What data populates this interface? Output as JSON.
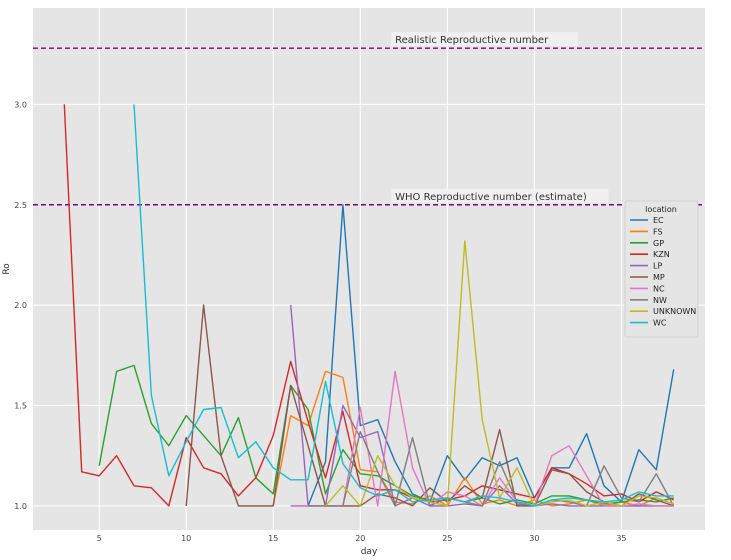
{
  "chart_data": {
    "type": "line",
    "xlabel": "day",
    "ylabel": "Ro",
    "xlim": [
      1.2,
      39.8
    ],
    "ylim": [
      0.88,
      3.48
    ],
    "xticks": [
      5,
      10,
      15,
      20,
      25,
      30,
      35
    ],
    "yticks": [
      1.0,
      1.5,
      2.0,
      2.5,
      3.0
    ],
    "ytick_labels": [
      "1.0",
      "1.5",
      "2.0",
      "2.5",
      "3.0"
    ],
    "grid": true,
    "legend": {
      "title": "location",
      "placement": "right"
    },
    "reference_lines": [
      {
        "y": 3.28,
        "label": "Realistic Reproductive number",
        "color": "#800080",
        "label_x": 22
      },
      {
        "y": 2.5,
        "label": "WHO Reproductive number (estimate)",
        "color": "#800080",
        "label_x": 22
      }
    ],
    "series": [
      {
        "name": "EC",
        "color": "#1f77b4",
        "x": [
          16,
          17,
          18,
          19,
          20,
          21,
          22,
          23,
          24,
          25,
          26,
          27,
          28,
          29,
          30,
          31,
          32,
          33,
          34,
          35,
          36,
          37,
          38
        ],
        "y": [
          1.0,
          1.0,
          1.22,
          2.5,
          1.4,
          1.43,
          1.22,
          1.06,
          1.02,
          1.25,
          1.13,
          1.24,
          1.2,
          1.24,
          1.04,
          1.19,
          1.19,
          1.36,
          1.1,
          1.02,
          1.28,
          1.18,
          1.68
        ]
      },
      {
        "name": "FS",
        "color": "#ff7f0e",
        "x": [
          15,
          16,
          17,
          18,
          19,
          20,
          21,
          22,
          23,
          24,
          25,
          26,
          27,
          28,
          29,
          30,
          31,
          32,
          33,
          34,
          35,
          36,
          37,
          38
        ],
        "y": [
          1.0,
          1.45,
          1.4,
          1.67,
          1.64,
          1.18,
          1.17,
          1.02,
          1.01,
          1.05,
          1.0,
          1.14,
          1.01,
          1.03,
          1.0,
          1.03,
          1.0,
          1.01,
          1.03,
          1.0,
          1.02,
          1.0,
          1.04,
          1.01
        ]
      },
      {
        "name": "GP",
        "color": "#2ca02c",
        "x": [
          5,
          6,
          7,
          8,
          9,
          10,
          11,
          12,
          13,
          14,
          15,
          16,
          17,
          18,
          19,
          20,
          21,
          22,
          23,
          24,
          25,
          26,
          27,
          28,
          29,
          30,
          31,
          32,
          33,
          34,
          35,
          36,
          37,
          38
        ],
        "y": [
          1.2,
          1.67,
          1.7,
          1.41,
          1.3,
          1.45,
          1.35,
          1.25,
          1.44,
          1.14,
          1.06,
          1.6,
          1.48,
          1.06,
          1.28,
          1.16,
          1.15,
          1.1,
          1.05,
          1.03,
          1.04,
          1.02,
          1.04,
          1.01,
          1.03,
          1.01,
          1.05,
          1.05,
          1.03,
          1.01,
          1.02,
          1.03,
          1.02,
          1.04
        ]
      },
      {
        "name": "KZN",
        "color": "#d62728",
        "x": [
          3,
          4,
          5,
          6,
          7,
          8,
          9,
          10,
          11,
          12,
          13,
          14,
          15,
          16,
          17,
          18,
          19,
          20,
          21,
          22,
          23,
          24,
          25,
          26,
          27,
          28,
          29,
          30,
          31,
          32,
          33,
          34,
          35,
          36,
          37,
          38
        ],
        "y": [
          3.0,
          1.17,
          1.15,
          1.25,
          1.1,
          1.09,
          1.0,
          1.34,
          1.19,
          1.16,
          1.05,
          1.14,
          1.35,
          1.72,
          1.42,
          1.14,
          1.47,
          1.1,
          1.08,
          1.08,
          1.04,
          1.02,
          1.03,
          1.05,
          1.1,
          1.08,
          1.06,
          1.04,
          1.19,
          1.16,
          1.11,
          1.05,
          1.06,
          1.02,
          1.07,
          1.03
        ]
      },
      {
        "name": "LP",
        "color": "#9467bd",
        "x": [
          16,
          17,
          18,
          19,
          20,
          21,
          22,
          23,
          24,
          25,
          26,
          27,
          28,
          29,
          30,
          31,
          32,
          33,
          34,
          35,
          36,
          37,
          38
        ],
        "y": [
          2.0,
          1.0,
          1.0,
          1.5,
          1.34,
          1.37,
          1.0,
          1.04,
          1.0,
          1.0,
          1.01,
          1.0,
          1.1,
          1.01,
          1.0,
          1.01,
          1.0,
          1.0,
          1.0,
          1.0,
          1.0,
          1.0,
          1.0
        ]
      },
      {
        "name": "MP",
        "color": "#8c564b",
        "x": [
          10,
          11,
          12,
          13,
          14,
          15,
          16,
          17,
          18,
          19,
          20,
          21,
          22,
          23,
          24,
          25,
          26,
          27,
          28,
          29,
          30,
          31,
          32,
          33,
          34,
          35,
          36,
          37,
          38
        ],
        "y": [
          1.0,
          2.0,
          1.25,
          1.0,
          1.0,
          1.0,
          1.6,
          1.3,
          1.0,
          1.0,
          1.0,
          1.06,
          1.04,
          1.0,
          1.09,
          1.02,
          1.1,
          1.04,
          1.38,
          1.0,
          1.0,
          1.18,
          1.16,
          1.07,
          1.02,
          1.0,
          1.06,
          1.03,
          1.0
        ]
      },
      {
        "name": "NC",
        "color": "#e377c2",
        "x": [
          16,
          17,
          18,
          19,
          20,
          21,
          22,
          23,
          24,
          25,
          26,
          27,
          28,
          29,
          30,
          31,
          32,
          33,
          34,
          35,
          36,
          37,
          38
        ],
        "y": [
          1.0,
          1.0,
          1.0,
          1.0,
          1.49,
          1.0,
          1.67,
          1.19,
          1.0,
          1.07,
          1.05,
          1.0,
          1.14,
          1.02,
          1.0,
          1.25,
          1.3,
          1.15,
          1.0,
          1.0,
          1.01,
          1.0,
          1.0
        ]
      },
      {
        "name": "NW",
        "color": "#7f7f7f",
        "x": [
          17,
          18,
          19,
          20,
          21,
          22,
          23,
          24,
          25,
          26,
          27,
          28,
          29,
          30,
          31,
          32,
          33,
          34,
          35,
          36,
          37,
          38
        ],
        "y": [
          1.0,
          1.0,
          1.0,
          1.37,
          1.17,
          1.0,
          1.34,
          1.0,
          1.04,
          1.02,
          1.0,
          1.22,
          1.02,
          1.0,
          1.03,
          1.02,
          1.0,
          1.2,
          1.04,
          1.02,
          1.16,
          1.0
        ]
      },
      {
        "name": "UNKNOWN",
        "color": "#bcbd22",
        "x": [
          18,
          19,
          20,
          21,
          22,
          23,
          24,
          25,
          26,
          27,
          28,
          29,
          30,
          31,
          32,
          33,
          34,
          35,
          36,
          37,
          38
        ],
        "y": [
          1.0,
          1.1,
          1.0,
          1.25,
          1.1,
          1.04,
          1.02,
          1.0,
          2.32,
          1.43,
          1.04,
          1.19,
          1.0,
          1.02,
          1.03,
          1.0,
          1.02,
          1.0,
          1.05,
          1.04,
          1.01
        ]
      },
      {
        "name": "WC",
        "color": "#17becf",
        "x": [
          7,
          8,
          9,
          10,
          11,
          12,
          13,
          14,
          15,
          16,
          17,
          18,
          19,
          20,
          21,
          22,
          23,
          24,
          25,
          26,
          27,
          28,
          29,
          30,
          31,
          32,
          33,
          34,
          35,
          36,
          37,
          38
        ],
        "y": [
          3.0,
          1.55,
          1.15,
          1.32,
          1.48,
          1.49,
          1.24,
          1.32,
          1.19,
          1.13,
          1.13,
          1.62,
          1.21,
          1.09,
          1.05,
          1.08,
          1.02,
          1.03,
          1.04,
          1.02,
          1.05,
          1.04,
          1.02,
          1.0,
          1.03,
          1.04,
          1.03,
          1.02,
          1.03,
          1.07,
          1.05,
          1.05
        ]
      }
    ]
  }
}
